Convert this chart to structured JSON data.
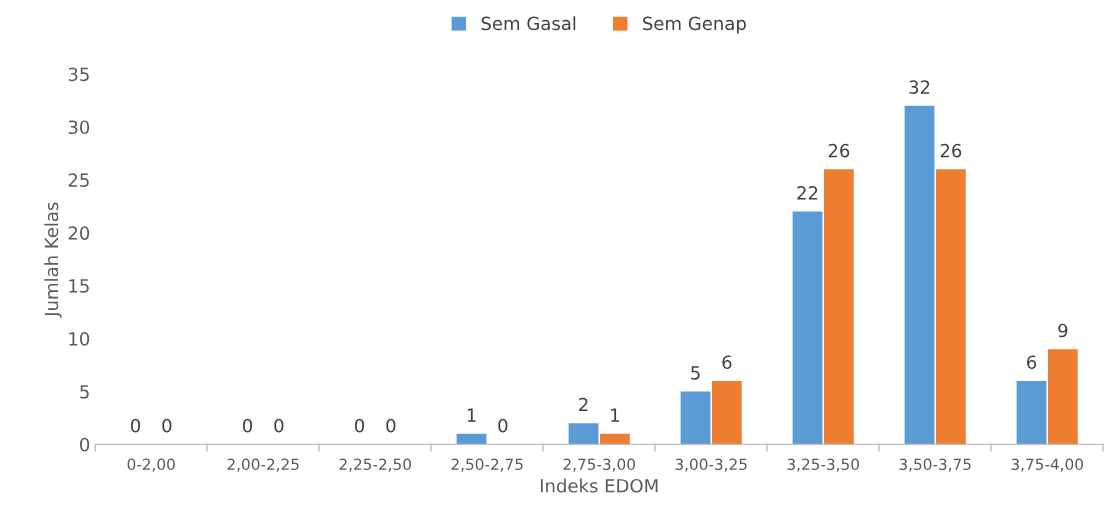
{
  "chart_data": {
    "type": "bar",
    "xlabel": "Indeks EDOM",
    "ylabel": "Jumlah Kelas",
    "categories": [
      "0-2,00",
      "2,00-2,25",
      "2,25-2,50",
      "2,50-2,75",
      "2,75-3,00",
      "3,00-3,25",
      "3,25-3,50",
      "3,50-3,75",
      "3,75-4,00"
    ],
    "series": [
      {
        "name": "Sem Gasal",
        "color": "#5b9bd5",
        "values": [
          0,
          0,
          0,
          1,
          2,
          5,
          22,
          32,
          6
        ]
      },
      {
        "name": "Sem Genap",
        "color": "#ed7d31",
        "values": [
          0,
          0,
          0,
          0,
          1,
          6,
          26,
          26,
          9
        ]
      }
    ],
    "ylim": [
      0,
      35
    ],
    "yticks": [
      0,
      5,
      10,
      15,
      20,
      25,
      30,
      35
    ],
    "grid": false,
    "legend": "top",
    "data_labels": true
  }
}
